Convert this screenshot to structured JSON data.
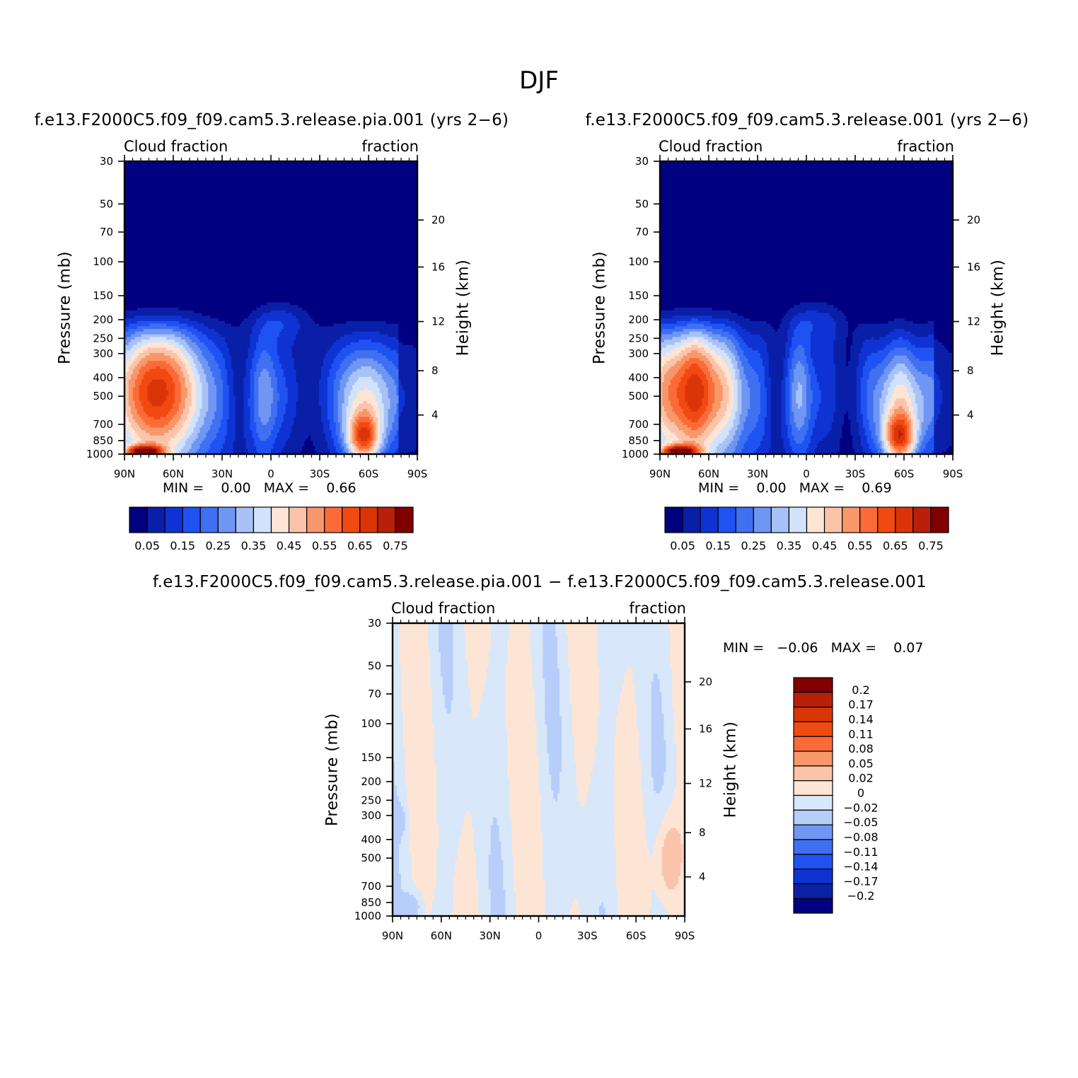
{
  "title": "DJF",
  "panels": {
    "p1": {
      "case_title": "f.e13.F2000C5.f09_f09.cam5.3.release.pia.001 (yrs 2−6)",
      "left_label": "Cloud fraction",
      "right_label": "fraction",
      "y_title": "Pressure (mb)",
      "y2_title": "Height (km)",
      "minmax": "MIN =    0.00   MAX =    0.66",
      "min": 0.0,
      "max": 0.66
    },
    "p2": {
      "case_title": "f.e13.F2000C5.f09_f09.cam5.3.release.001 (yrs 2−6)",
      "left_label": "Cloud fraction",
      "right_label": "fraction",
      "y_title": "Pressure (mb)",
      "y2_title": "Height (km)",
      "minmax": "MIN =    0.00   MAX =    0.69",
      "min": 0.0,
      "max": 0.69
    },
    "p3": {
      "case_title": "f.e13.F2000C5.f09_f09.cam5.3.release.pia.001 − f.e13.F2000C5.f09_f09.cam5.3.release.001",
      "left_label": "Cloud fraction",
      "right_label": "fraction",
      "y_title": "Pressure (mb)",
      "y2_title": "Height (km)",
      "minmax": "MIN =   −0.06   MAX =    0.07",
      "min": -0.06,
      "max": 0.07
    }
  },
  "chart_data": {
    "type": "heatmap",
    "x_tick_labels": [
      "90N",
      "60N",
      "30N",
      "0",
      "30S",
      "60S",
      "90S"
    ],
    "x_values": [
      90,
      60,
      30,
      0,
      -30,
      -60,
      -90
    ],
    "y_tick_labels": [
      "30",
      "50",
      "70",
      "100",
      "150",
      "200",
      "250",
      "300",
      "400",
      "500",
      "700",
      "850",
      "1000"
    ],
    "y_values": [
      30,
      50,
      70,
      100,
      150,
      200,
      250,
      300,
      400,
      500,
      700,
      850,
      1000
    ],
    "y_scale": "log",
    "y2_tick_labels": [
      "20",
      "16",
      "12",
      "8",
      "4"
    ],
    "y2_values": [
      20,
      16,
      12,
      8,
      4
    ],
    "abs_levels": [
      0.05,
      0.1,
      0.15,
      0.2,
      0.25,
      0.3,
      0.35,
      0.4,
      0.45,
      0.5,
      0.55,
      0.6,
      0.65,
      0.7,
      0.75
    ],
    "abs_level_labels": [
      "0.05",
      "0.15",
      "0.25",
      "0.35",
      "0.45",
      "0.55",
      "0.65",
      "0.75"
    ],
    "abs_colors": [
      "#000080",
      "#0a1fa8",
      "#0f33d3",
      "#1f52f2",
      "#3f70f2",
      "#6f96f2",
      "#a8c2f7",
      "#d2e2fa",
      "#fde5d5",
      "#fbc4aa",
      "#f7976a",
      "#fb6b38",
      "#f04a12",
      "#d93508",
      "#b8200a",
      "#800000"
    ],
    "diff_levels": [
      -0.2,
      -0.17,
      -0.14,
      -0.11,
      -0.08,
      -0.05,
      -0.02,
      0,
      0.02,
      0.05,
      0.08,
      0.11,
      0.14,
      0.17,
      0.2
    ],
    "diff_level_labels": [
      "0.2",
      "0.17",
      "0.14",
      "0.11",
      "0.08",
      "0.05",
      "0.02",
      "0",
      "−0.02",
      "−0.05",
      "−0.08",
      "−0.11",
      "−0.14",
      "−0.17",
      "−0.2"
    ],
    "diff_colors": [
      "#000080",
      "#0b22a4",
      "#0f33d3",
      "#1f52f2",
      "#3f70f2",
      "#6f96f2",
      "#b7cefa",
      "#d8e7fa",
      "#fde5d5",
      "#fbc4aa",
      "#f7976a",
      "#fb6b38",
      "#f04a12",
      "#d93508",
      "#b8200a",
      "#800000"
    ]
  }
}
